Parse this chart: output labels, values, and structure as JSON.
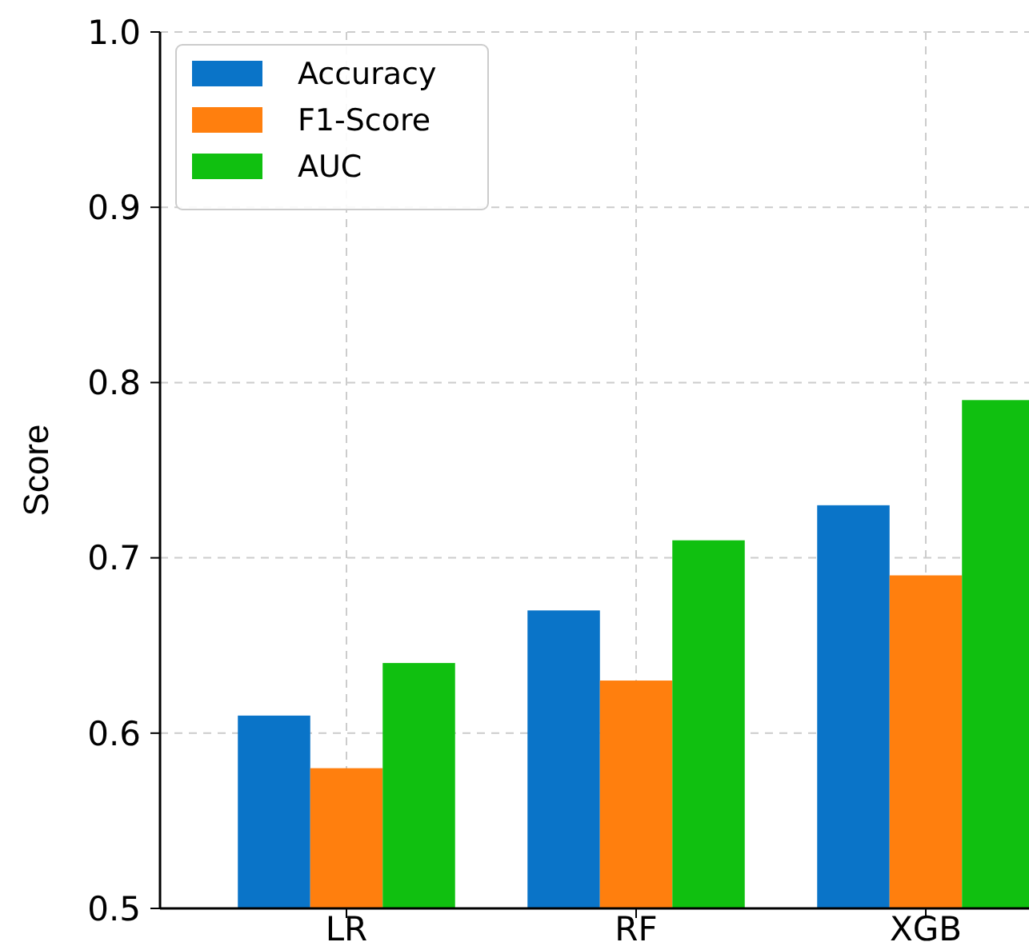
{
  "chart_data": {
    "type": "bar",
    "ylabel": "Score",
    "categories": [
      "LR",
      "RF",
      "XGB"
    ],
    "series": [
      {
        "name": "Accuracy",
        "color": "#0a74c8",
        "values": [
          0.61,
          0.67,
          0.73
        ]
      },
      {
        "name": "F1-Score",
        "color": "#ff7f0e",
        "values": [
          0.58,
          0.63,
          0.69
        ]
      },
      {
        "name": "AUC",
        "color": "#10c010",
        "values": [
          0.64,
          0.71,
          0.79
        ]
      }
    ],
    "ylim": [
      0.5,
      1.0
    ],
    "yticks": [
      {
        "value": 0.5,
        "label": "0.5"
      },
      {
        "value": 0.6,
        "label": "0.6"
      },
      {
        "value": 0.7,
        "label": "0.7"
      },
      {
        "value": 0.8,
        "label": "0.8"
      },
      {
        "value": 0.9,
        "label": "0.9"
      },
      {
        "value": 1.0,
        "label": "1.0"
      }
    ],
    "grid": true,
    "legend": "top left"
  }
}
